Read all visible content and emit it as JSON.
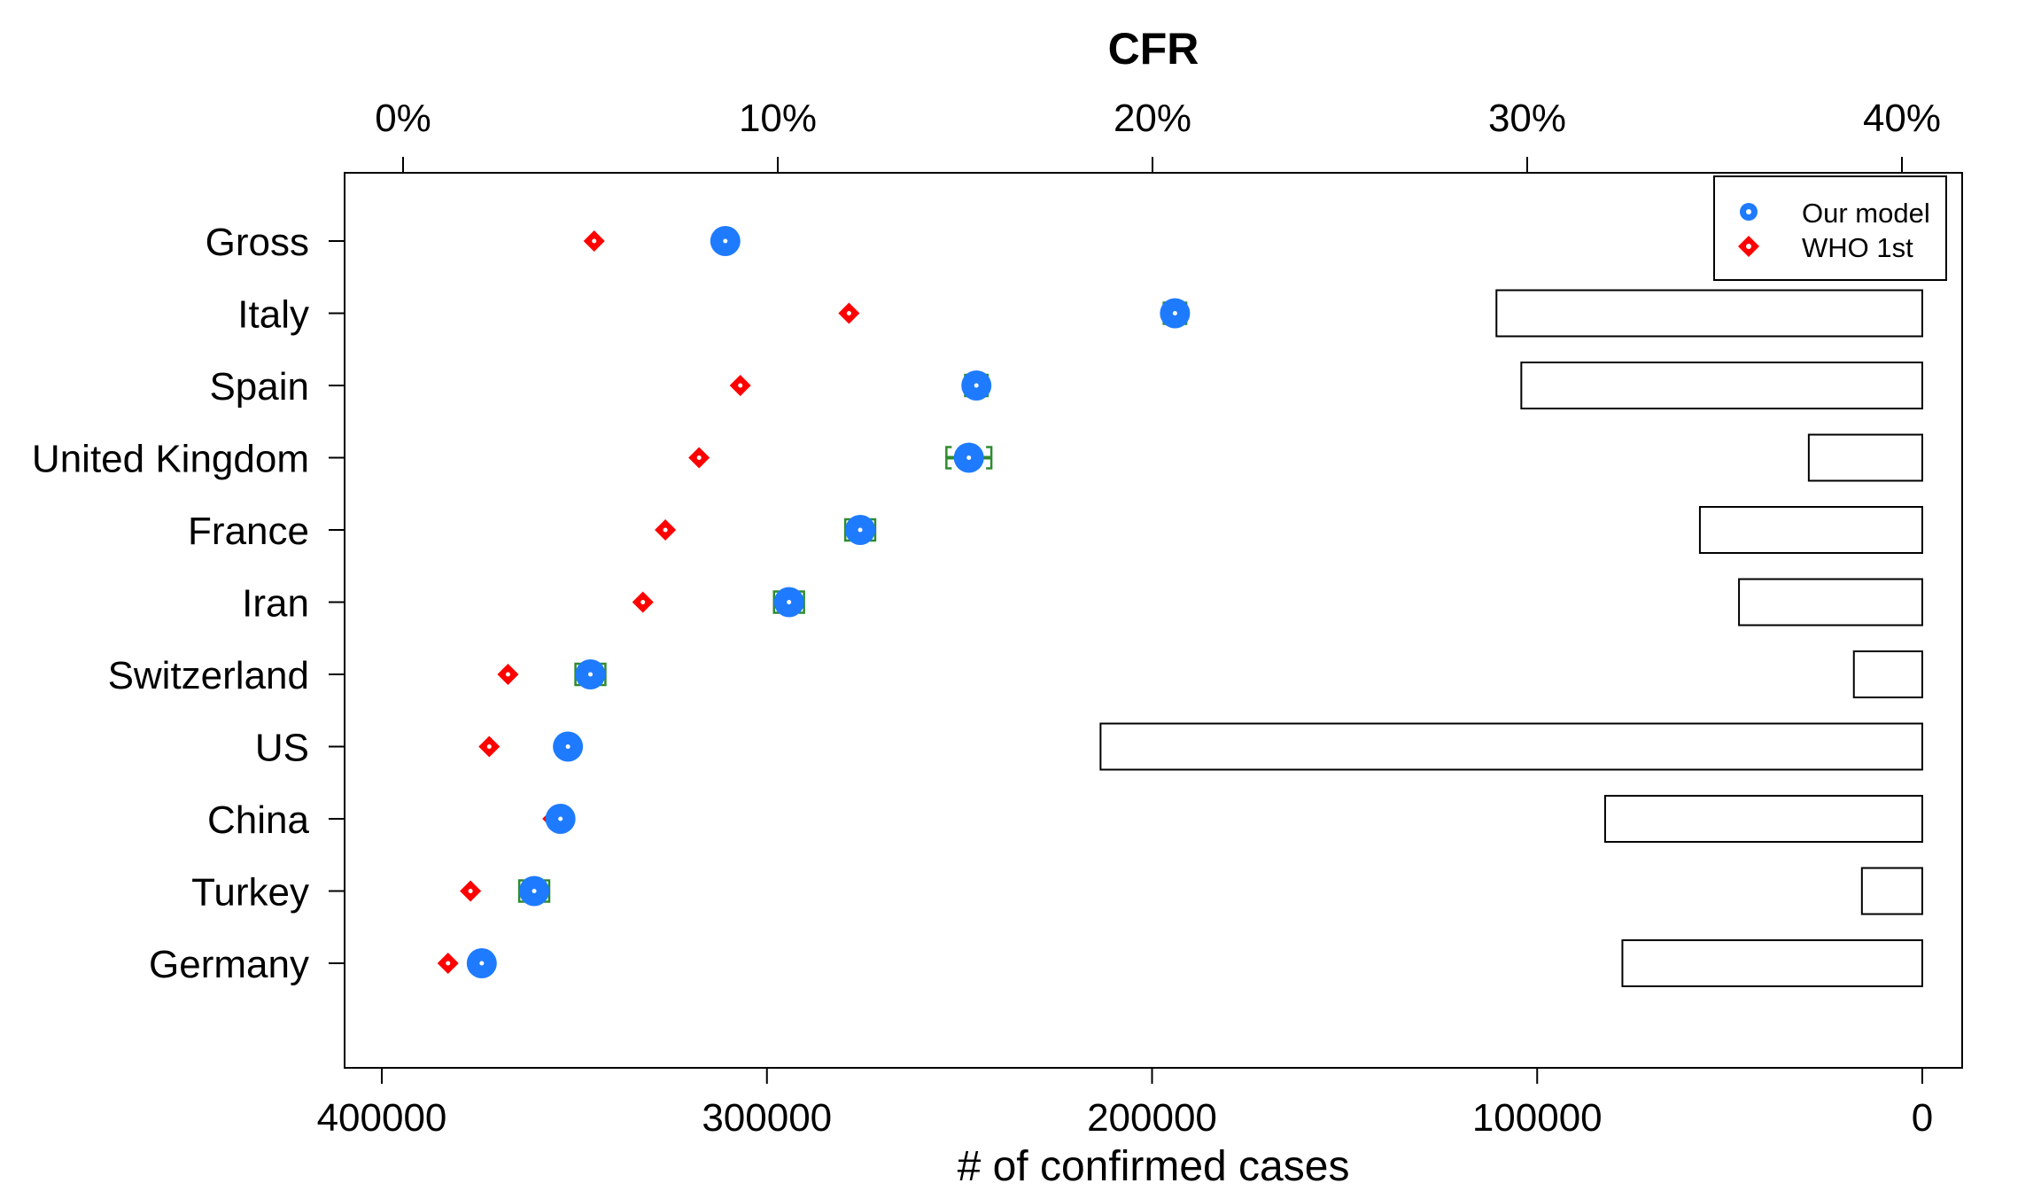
{
  "chart_data": {
    "type": "scatter",
    "title": "CFR",
    "xlabel": "# of confirmed cases",
    "top_axis": {
      "ticks": [
        0,
        10,
        20,
        30,
        40
      ],
      "tick_labels": [
        "0%",
        "10%",
        "20%",
        "30%",
        "40%"
      ],
      "range": [
        0,
        40.5
      ]
    },
    "bottom_axis": {
      "ticks": [
        400000,
        300000,
        200000,
        100000,
        0
      ],
      "tick_labels": [
        "400000",
        "300000",
        "200000",
        "100000",
        "0"
      ],
      "range": [
        400000,
        -10000
      ]
    },
    "categories": [
      "Gross",
      "Italy",
      "Spain",
      "United Kingdom",
      "France",
      "Iran",
      "Switzerland",
      "US",
      "China",
      "Turkey",
      "Germany"
    ],
    "legend": {
      "position": "top-right",
      "entries": [
        {
          "label": "Our model",
          "color": "#1E7BFF",
          "marker": "circle"
        },
        {
          "label": "WHO 1st",
          "color": "#FF0000",
          "marker": "diamond"
        }
      ]
    },
    "series": [
      {
        "name": "Our model",
        "color": "#1E7BFF",
        "marker": "circle",
        "values": [
          8.6,
          20.6,
          15.3,
          15.1,
          12.2,
          10.3,
          5.0,
          4.4,
          4.2,
          3.5,
          2.1
        ],
        "ci_low": [
          8.5,
          20.3,
          15.0,
          14.5,
          11.8,
          9.9,
          4.6,
          4.3,
          4.1,
          3.1,
          2.0
        ],
        "ci_high": [
          8.7,
          20.9,
          15.6,
          15.7,
          12.6,
          10.7,
          5.4,
          4.5,
          4.3,
          3.9,
          2.2
        ],
        "ci_color": "#2E8B2E"
      },
      {
        "name": "WHO 1st",
        "color": "#FF0000",
        "marker": "diamond",
        "values": [
          5.1,
          11.9,
          9.0,
          7.9,
          7.0,
          6.4,
          2.8,
          2.3,
          4.0,
          1.8,
          1.2
        ]
      }
    ],
    "confirmed_cases": [
      null,
      110574,
      104118,
      29474,
      57749,
      47593,
      17768,
      213372,
      82361,
      15679,
      77872
    ],
    "grid": false,
    "bar_fill": "#ffffff",
    "bar_stroke": "#000000"
  }
}
